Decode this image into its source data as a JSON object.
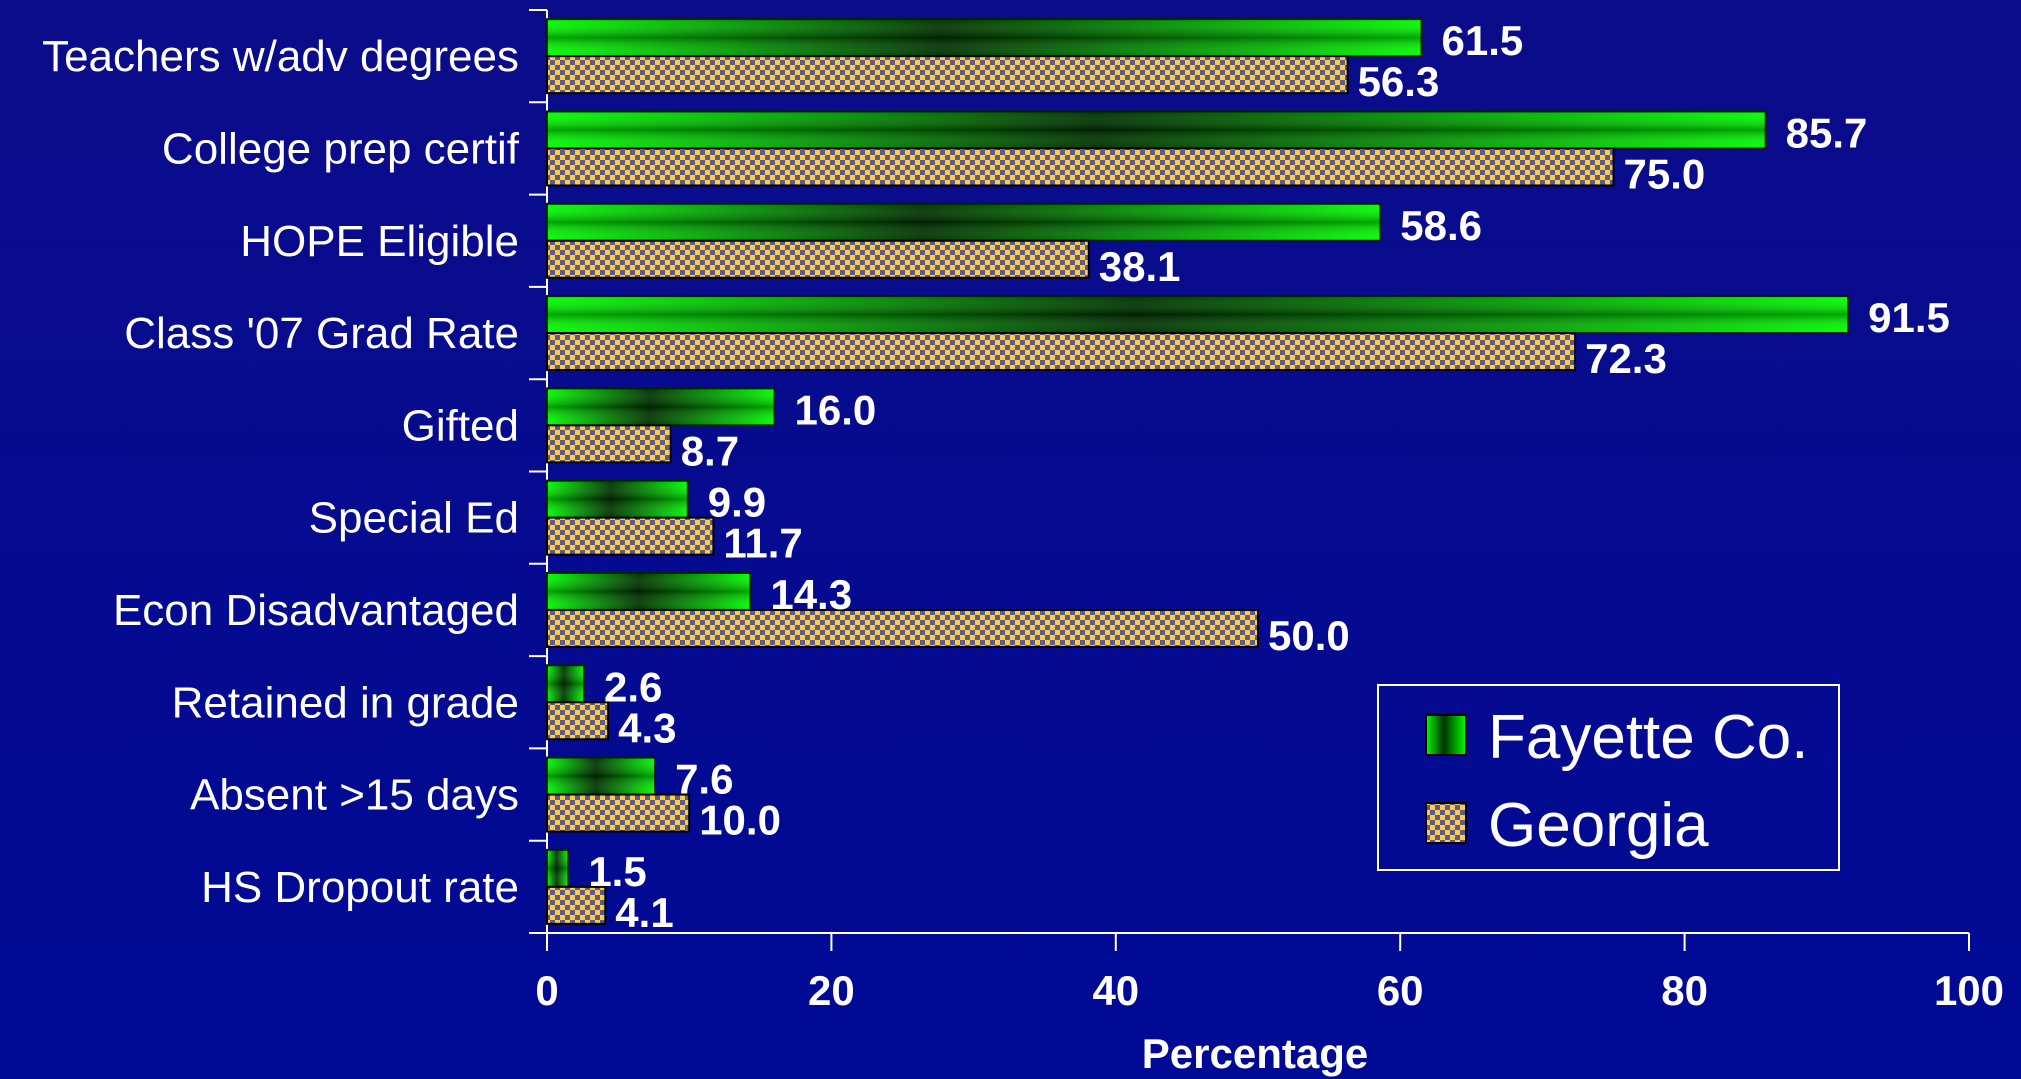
{
  "chart_data": {
    "type": "bar",
    "orientation": "horizontal",
    "categories": [
      "Teachers w/adv degrees",
      "College prep certif",
      "HOPE Eligible",
      "Class '07 Grad Rate",
      "Gifted",
      "Special Ed",
      "Econ Disadvantaged",
      "Retained in grade",
      "Absent >15 days",
      "HS Dropout rate"
    ],
    "series": [
      {
        "name": "Fayette Co.",
        "color": "#00ee00",
        "values": [
          61.5,
          85.7,
          58.6,
          91.5,
          16.0,
          9.9,
          14.3,
          2.6,
          7.6,
          1.5
        ],
        "labels": [
          "61.5",
          "85.7",
          "58.6",
          "91.5",
          "16.0",
          "9.9",
          "14.3",
          "2.6",
          "7.6",
          "1.5"
        ]
      },
      {
        "name": "Georgia",
        "color": "#ffcc44",
        "values": [
          56.3,
          75.0,
          38.1,
          72.3,
          8.7,
          11.7,
          50.0,
          4.3,
          10.0,
          4.1
        ],
        "labels": [
          "56.3",
          "75.0",
          "38.1",
          "72.3",
          "8.7",
          "11.7",
          "50.0",
          "4.3",
          "10.0",
          "4.1"
        ]
      }
    ],
    "xlabel": "Percentage",
    "ylabel": "",
    "xlim": [
      0,
      100
    ],
    "xticks": [
      0,
      20,
      40,
      60,
      80,
      100
    ],
    "xtick_labels": [
      "0",
      "20",
      "40",
      "60",
      "80",
      "100"
    ],
    "legend_position": "bottom-right",
    "grid": false
  }
}
